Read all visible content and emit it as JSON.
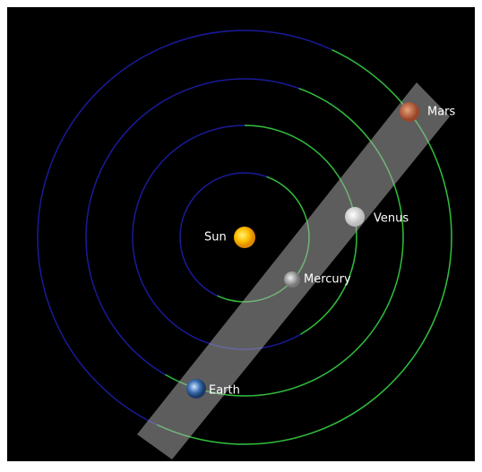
{
  "bodies": [
    {
      "label": "Sun"
    },
    {
      "label": "Mercury"
    },
    {
      "label": "Venus"
    },
    {
      "label": "Earth"
    },
    {
      "label": "Mars"
    }
  ]
}
